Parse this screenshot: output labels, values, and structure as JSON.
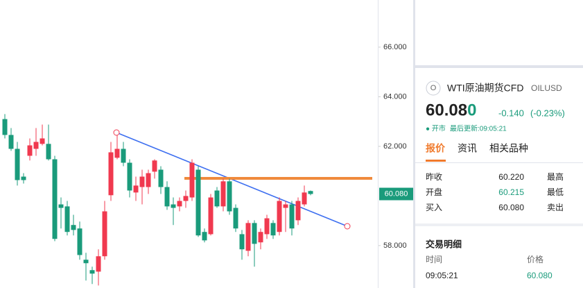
{
  "chart_data": {
    "type": "candlestick",
    "categories": [
      null,
      null,
      null,
      null,
      null,
      null,
      null,
      null,
      null,
      null,
      null,
      null,
      null,
      null,
      null,
      null,
      null,
      null,
      null,
      null,
      null,
      null,
      null,
      null,
      null,
      null,
      null,
      null,
      null,
      null,
      null,
      null,
      null,
      null,
      null,
      null,
      null,
      null,
      null,
      null,
      null,
      null,
      null,
      null,
      null,
      null,
      null,
      null,
      null,
      null
    ],
    "ohlc": [
      [
        63.1,
        63.3,
        62.32,
        62.46
      ],
      [
        62.46,
        62.74,
        61.82,
        61.9
      ],
      [
        61.9,
        62.18,
        60.42,
        60.64
      ],
      [
        60.78,
        60.92,
        60.5,
        60.64
      ],
      [
        61.62,
        62.32,
        61.43,
        62.04
      ],
      [
        61.9,
        62.74,
        61.62,
        62.18
      ],
      [
        62.1,
        62.88,
        62.04,
        62.32
      ],
      [
        62.1,
        62.88,
        61.43,
        61.48
      ],
      [
        61.48,
        61.62,
        58.18,
        58.27
      ],
      [
        59.66,
        59.94,
        58.69,
        59.52
      ],
      [
        59.58,
        59.8,
        58.41,
        58.55
      ],
      [
        58.83,
        59.24,
        58.41,
        58.63
      ],
      [
        58.69,
        58.97,
        57.43,
        57.62
      ],
      [
        57.43,
        57.71,
        56.59,
        57.29
      ],
      [
        57.01,
        57.15,
        56.45,
        56.87
      ],
      [
        56.95,
        57.85,
        56.39,
        57.57
      ],
      [
        57.57,
        59.8,
        57.43,
        59.38
      ],
      [
        60.03,
        62.18,
        59.8,
        61.76
      ],
      [
        61.54,
        62.46,
        61.48,
        61.9
      ],
      [
        61.9,
        62.18,
        61.2,
        61.34
      ],
      [
        61.34,
        61.48,
        59.94,
        60.22
      ],
      [
        60.14,
        60.78,
        59.8,
        60.42
      ],
      [
        60.36,
        61.06,
        59.66,
        60.78
      ],
      [
        60.36,
        61.06,
        60.08,
        60.92
      ],
      [
        60.98,
        61.48,
        60.7,
        61.43
      ],
      [
        61.06,
        61.2,
        60.08,
        60.36
      ],
      [
        60.36,
        60.59,
        59.44,
        59.58
      ],
      [
        59.66,
        59.94,
        58.83,
        59.52
      ],
      [
        59.58,
        59.94,
        59.38,
        59.8
      ],
      [
        59.8,
        60.22,
        59.52,
        60.0
      ],
      [
        59.94,
        61.48,
        59.8,
        61.34
      ],
      [
        61.06,
        61.2,
        58.35,
        58.41
      ],
      [
        58.55,
        58.69,
        58.13,
        58.21
      ],
      [
        58.46,
        60.08,
        58.41,
        59.94
      ],
      [
        60.22,
        60.36,
        59.52,
        59.58
      ],
      [
        59.58,
        60.7,
        59.38,
        60.59
      ],
      [
        60.59,
        60.7,
        59.24,
        59.38
      ],
      [
        59.52,
        59.66,
        58.55,
        58.69
      ],
      [
        58.46,
        58.63,
        57.43,
        57.85
      ],
      [
        57.79,
        59.02,
        57.57,
        58.91
      ],
      [
        58.91,
        59.02,
        57.15,
        58.07
      ],
      [
        58.13,
        58.69,
        57.85,
        58.55
      ],
      [
        58.46,
        59.24,
        58.27,
        59.1
      ],
      [
        58.91,
        59.02,
        58.27,
        58.41
      ],
      [
        58.55,
        59.94,
        58.41,
        59.8
      ],
      [
        59.52,
        59.8,
        58.55,
        59.66
      ],
      [
        59.66,
        59.8,
        58.41,
        58.69
      ],
      [
        59.02,
        59.94,
        58.83,
        59.8
      ],
      [
        59.66,
        60.42,
        59.58,
        60.14
      ],
      [
        60.2,
        60.22,
        60.03,
        60.08
      ]
    ],
    "up_color": "#f0394f",
    "down_color": "#1a9b7b",
    "ylim": [
      56.29,
      67.9
    ],
    "yticks": [
      {
        "value": 58,
        "label": "58.000"
      },
      {
        "value": 62,
        "label": "62.000"
      },
      {
        "value": 64,
        "label": "64.000"
      },
      {
        "value": 66,
        "label": "66.000"
      }
    ],
    "last_price": {
      "value": 60.08,
      "label": "60.080"
    }
  },
  "quote_panel": {
    "icon": "O",
    "name": "WTI原油期货CFD",
    "code": "OILUSD",
    "price_parts": [
      "60.08",
      "0"
    ],
    "change": "-0.140",
    "change_pct": "(-0.23%)",
    "status": "● 开市",
    "last_update": "最后更新:09:05:21",
    "tabs": [
      "报价",
      "资讯",
      "相关品种"
    ],
    "rows": [
      [
        "昨收",
        "60.220",
        "最高"
      ],
      [
        "开盘",
        "60.215",
        "最低"
      ],
      [
        "买入",
        "60.080",
        "卖出"
      ]
    ],
    "trades": {
      "title": "交易明细",
      "headers": [
        "时间",
        "价格"
      ],
      "rows": [
        [
          "09:05:21",
          "60.080"
        ]
      ]
    }
  }
}
